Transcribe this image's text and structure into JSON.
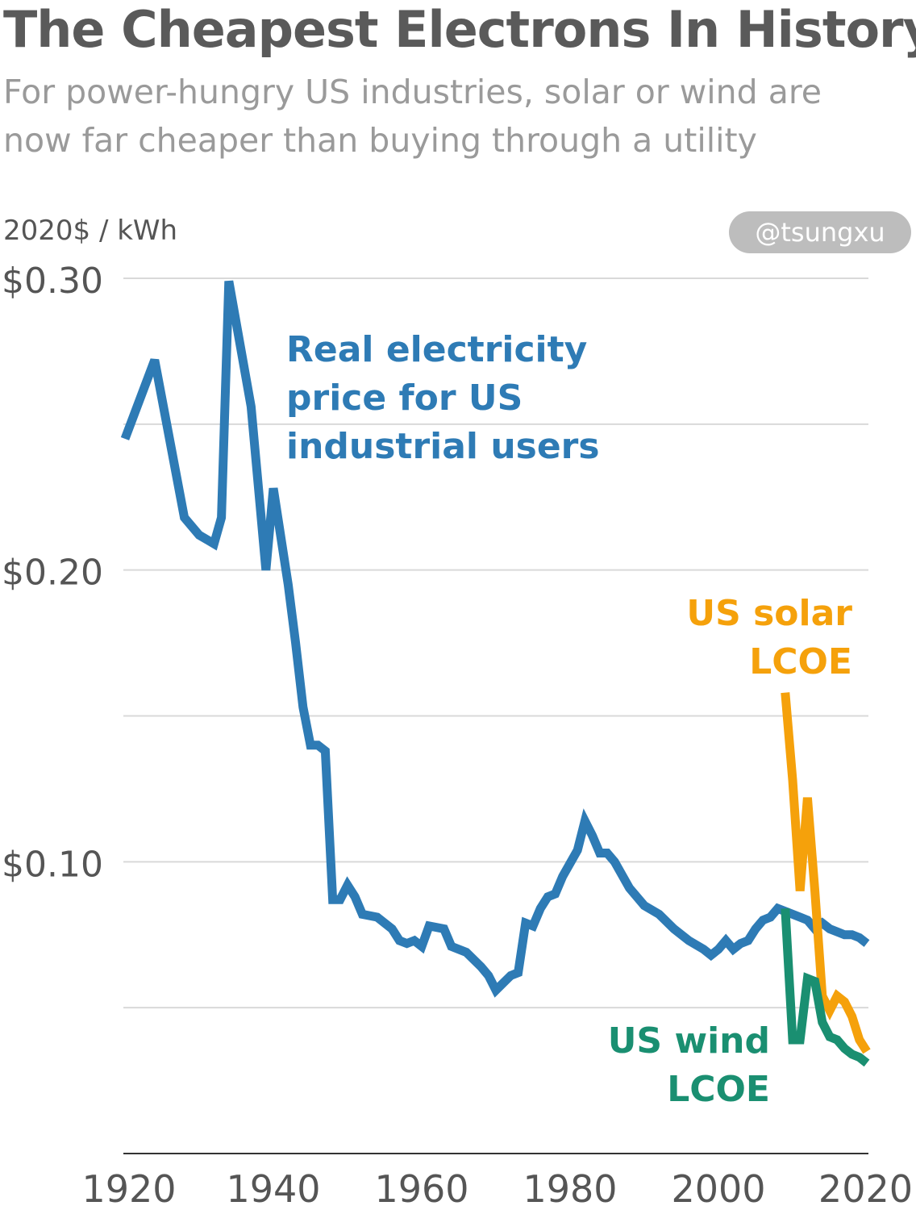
{
  "title": "The Cheapest Electrons In History",
  "subtitle_lines": [
    "For power-hungry US industries, solar or wind are",
    "now far cheaper than buying through a utility"
  ],
  "unit_label": "2020$ / kWh",
  "credit": "@tsungxu",
  "colors": {
    "electricity": "#2e7bb5",
    "solar": "#f5a10b",
    "wind": "#1a8f71",
    "grid": "#d9d9d9",
    "text": "#555555"
  },
  "chart_data": {
    "type": "line",
    "title": "The Cheapest Electrons In History",
    "ylabel": "2020$ / kWh",
    "xlim": [
      1920,
      2020
    ],
    "ylim": [
      0,
      0.3
    ],
    "x_ticks": [
      "1920",
      "1940",
      "1960",
      "1980",
      "2000",
      "2020"
    ],
    "y_ticks": [
      {
        "value": 0.3,
        "label": "$0.30"
      },
      {
        "value": 0.2,
        "label": "$0.20"
      },
      {
        "value": 0.1,
        "label": "$0.10"
      }
    ],
    "gridlines": [
      0.05,
      0.1,
      0.15,
      0.2,
      0.25,
      0.3
    ],
    "series": [
      {
        "name": "Real electricity price for US industrial users",
        "label_lines": [
          "Real electricity",
          "price for US",
          "industrial users"
        ],
        "color_key": "electricity",
        "points": [
          [
            1920,
            0.245
          ],
          [
            1924,
            0.272
          ],
          [
            1928,
            0.218
          ],
          [
            1930,
            0.212
          ],
          [
            1932,
            0.209
          ],
          [
            1933,
            0.218
          ],
          [
            1934,
            0.299
          ],
          [
            1937,
            0.256
          ],
          [
            1939,
            0.2
          ],
          [
            1940,
            0.228
          ],
          [
            1942,
            0.195
          ],
          [
            1943,
            0.175
          ],
          [
            1944,
            0.153
          ],
          [
            1945,
            0.14
          ],
          [
            1946,
            0.14
          ],
          [
            1947,
            0.138
          ],
          [
            1948,
            0.087
          ],
          [
            1949,
            0.087
          ],
          [
            1950,
            0.092
          ],
          [
            1951,
            0.088
          ],
          [
            1952,
            0.082
          ],
          [
            1954,
            0.081
          ],
          [
            1956,
            0.077
          ],
          [
            1957,
            0.073
          ],
          [
            1958,
            0.072
          ],
          [
            1959,
            0.073
          ],
          [
            1960,
            0.071
          ],
          [
            1961,
            0.078
          ],
          [
            1963,
            0.077
          ],
          [
            1964,
            0.071
          ],
          [
            1966,
            0.069
          ],
          [
            1968,
            0.064
          ],
          [
            1969,
            0.061
          ],
          [
            1970,
            0.056
          ],
          [
            1972,
            0.061
          ],
          [
            1973,
            0.062
          ],
          [
            1974,
            0.079
          ],
          [
            1975,
            0.078
          ],
          [
            1976,
            0.084
          ],
          [
            1977,
            0.088
          ],
          [
            1978,
            0.089
          ],
          [
            1979,
            0.095
          ],
          [
            1981,
            0.104
          ],
          [
            1982,
            0.114
          ],
          [
            1983,
            0.109
          ],
          [
            1984,
            0.103
          ],
          [
            1985,
            0.103
          ],
          [
            1986,
            0.1
          ],
          [
            1988,
            0.091
          ],
          [
            1990,
            0.085
          ],
          [
            1992,
            0.082
          ],
          [
            1994,
            0.077
          ],
          [
            1996,
            0.073
          ],
          [
            1998,
            0.07
          ],
          [
            1999,
            0.068
          ],
          [
            2000,
            0.07
          ],
          [
            2001,
            0.073
          ],
          [
            2002,
            0.07
          ],
          [
            2003,
            0.072
          ],
          [
            2004,
            0.073
          ],
          [
            2005,
            0.077
          ],
          [
            2006,
            0.08
          ],
          [
            2007,
            0.081
          ],
          [
            2008,
            0.084
          ],
          [
            2009,
            0.083
          ],
          [
            2010,
            0.082
          ],
          [
            2011,
            0.081
          ],
          [
            2012,
            0.08
          ],
          [
            2013,
            0.077
          ],
          [
            2014,
            0.079
          ],
          [
            2015,
            0.077
          ],
          [
            2016,
            0.076
          ],
          [
            2017,
            0.075
          ],
          [
            2018,
            0.075
          ],
          [
            2019,
            0.074
          ],
          [
            2020,
            0.072
          ]
        ]
      },
      {
        "name": "US solar LCOE",
        "label_lines": [
          "US solar",
          "LCOE"
        ],
        "color_key": "solar",
        "points": [
          [
            2009,
            0.158
          ],
          [
            2010,
            0.128
          ],
          [
            2011,
            0.09
          ],
          [
            2012,
            0.122
          ],
          [
            2013,
            0.09
          ],
          [
            2014,
            0.054
          ],
          [
            2015,
            0.049
          ],
          [
            2016,
            0.054
          ],
          [
            2017,
            0.052
          ],
          [
            2018,
            0.047
          ],
          [
            2019,
            0.039
          ],
          [
            2020,
            0.035
          ]
        ]
      },
      {
        "name": "US wind LCOE",
        "label_lines": [
          "US wind",
          "LCOE"
        ],
        "color_key": "wind",
        "points": [
          [
            2009,
            0.084
          ],
          [
            2010,
            0.039
          ],
          [
            2011,
            0.039
          ],
          [
            2012,
            0.06
          ],
          [
            2013,
            0.059
          ],
          [
            2014,
            0.045
          ],
          [
            2015,
            0.04
          ],
          [
            2016,
            0.039
          ],
          [
            2017,
            0.036
          ],
          [
            2018,
            0.034
          ],
          [
            2019,
            0.033
          ],
          [
            2020,
            0.031
          ]
        ]
      }
    ]
  }
}
